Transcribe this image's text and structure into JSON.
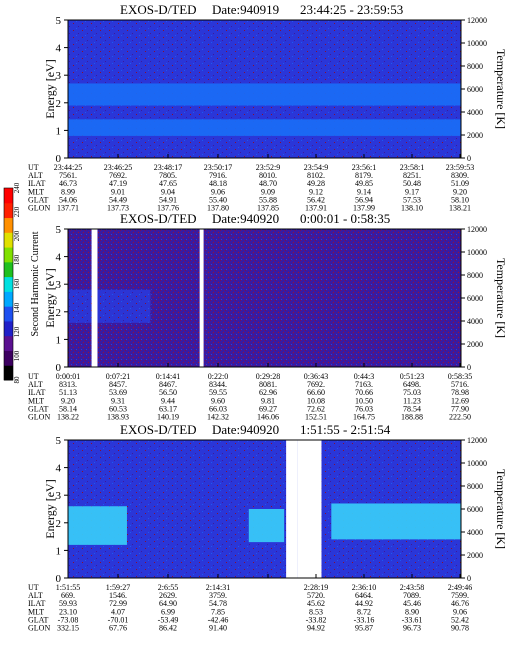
{
  "chart_data": [
    {
      "type": "heatmap",
      "title": "EXOS-D/TED",
      "date": "Date:940919",
      "time_range": "23:44:25 - 23:59:53",
      "ylabel": "Energy [eV]",
      "y2label": "Temperature [K]",
      "ylim": [
        0,
        5
      ],
      "y2lim": [
        0,
        12000
      ],
      "yticks": [
        "0",
        "1",
        "2",
        "3",
        "4",
        "5"
      ],
      "y2ticks": [
        "0",
        "2000",
        "4000",
        "6000",
        "8000",
        "10000",
        "12000"
      ],
      "background_level": "blue",
      "bands": [
        {
          "from": 1.9,
          "to": 2.7,
          "level": "bright-blue"
        },
        {
          "from": 1.4,
          "to": 1.9,
          "level": "blue"
        },
        {
          "from": 0.8,
          "to": 1.4,
          "level": "bright-blue"
        }
      ],
      "gaps": [],
      "orbit_rows": [
        {
          "label": "UT",
          "values": [
            "23:44:25",
            "23:46:25",
            "23:48:17",
            "23:50:17",
            "23:52:9",
            "23:54:9",
            "23:56:1",
            "23:58:1",
            "23:59:53"
          ]
        },
        {
          "label": "ALT",
          "values": [
            "7561.",
            "7692.",
            "7805.",
            "7916.",
            "8010.",
            "8102.",
            "8179.",
            "8251.",
            "8309."
          ]
        },
        {
          "label": "ILAT",
          "values": [
            "46.73",
            "47.19",
            "47.65",
            "48.18",
            "48.70",
            "49.28",
            "49.85",
            "50.48",
            "51.09"
          ]
        },
        {
          "label": "MLT",
          "values": [
            "8.99",
            "9.01",
            "9.04",
            "9.06",
            "9.09",
            "9.12",
            "9.14",
            "9.17",
            "9.20"
          ]
        },
        {
          "label": "GLAT",
          "values": [
            "54.06",
            "54.49",
            "54.91",
            "55.40",
            "55.88",
            "56.42",
            "56.94",
            "57.53",
            "58.10"
          ]
        },
        {
          "label": "GLON",
          "values": [
            "137.71",
            "137.73",
            "137.76",
            "137.80",
            "137.85",
            "137.91",
            "137.99",
            "138.10",
            "138.21"
          ]
        }
      ]
    },
    {
      "type": "heatmap",
      "title": "EXOS-D/TED",
      "date": "Date:940920",
      "time_range": "0:00:01 - 0:58:35",
      "ylabel": "Energy [eV]",
      "y2label": "Temperature [K]",
      "ylim": [
        0,
        5
      ],
      "y2lim": [
        0,
        12000
      ],
      "yticks": [
        "0",
        "1",
        "2",
        "3",
        "4",
        "5"
      ],
      "y2ticks": [
        "0",
        "2000",
        "4000",
        "6000",
        "8000",
        "10000",
        "12000"
      ],
      "background_level": "indigo",
      "bands": [
        {
          "from": 1.6,
          "to": 2.8,
          "level": "blue",
          "x_end": 0.21
        }
      ],
      "gaps": [
        [
          0.06,
          0.075
        ],
        [
          0.335,
          0.345
        ]
      ],
      "orbit_rows": [
        {
          "label": "UT",
          "values": [
            "0:00:01",
            "0:07:21",
            "0:14:41",
            "0:22:0",
            "0:29:28",
            "0:36:43",
            "0:44:3",
            "0:51:23",
            "0:58:35"
          ]
        },
        {
          "label": "ALT",
          "values": [
            "8313.",
            "8457.",
            "8467.",
            "8344.",
            "8081.",
            "7692.",
            "7163.",
            "6498.",
            "5716."
          ]
        },
        {
          "label": "ILAT",
          "values": [
            "51.13",
            "53.69",
            "56.50",
            "59.55",
            "62.96",
            "66.60",
            "70.66",
            "75.03",
            "78.98"
          ]
        },
        {
          "label": "MLT",
          "values": [
            "9.20",
            "9.31",
            "9.44",
            "9.60",
            "9.81",
            "10.08",
            "10.50",
            "11.23",
            "12.69"
          ]
        },
        {
          "label": "GLAT",
          "values": [
            "58.14",
            "60.53",
            "63.17",
            "66.03",
            "69.27",
            "72.62",
            "76.03",
            "78.54",
            "77.90"
          ]
        },
        {
          "label": "GLON",
          "values": [
            "138.22",
            "138.93",
            "140.19",
            "142.32",
            "146.06",
            "152.51",
            "164.75",
            "188.88",
            "222.50"
          ]
        }
      ]
    },
    {
      "type": "heatmap",
      "title": "EXOS-D/TED",
      "date": "Date:940920",
      "time_range": "1:51:55 - 2:51:54",
      "ylabel": "Energy [eV]",
      "y2label": "Temperature [K]",
      "ylim": [
        0,
        5
      ],
      "y2lim": [
        0,
        12000
      ],
      "yticks": [
        "0",
        "1",
        "2",
        "3",
        "4",
        "5"
      ],
      "y2ticks": [
        "0",
        "2000",
        "4000",
        "6000",
        "8000",
        "10000",
        "12000"
      ],
      "background_level": "blue",
      "bands": [
        {
          "from": 1.2,
          "to": 2.6,
          "level": "cyan",
          "x_start": 0.0,
          "x_end": 0.15
        },
        {
          "from": 1.3,
          "to": 2.5,
          "level": "cyan",
          "x_start": 0.46,
          "x_end": 0.55
        },
        {
          "from": 1.4,
          "to": 2.7,
          "level": "cyan",
          "x_start": 0.67,
          "x_end": 1.0
        }
      ],
      "gaps": [
        [
          0.555,
          0.585
        ],
        [
          0.585,
          0.645
        ]
      ],
      "orbit_rows": [
        {
          "label": "UT",
          "values": [
            "1:51:55",
            "1:59:27",
            "2:6:55",
            "2:14:31",
            "",
            "2:28:19",
            "2:36:10",
            "2:43:58",
            "2:49:46"
          ]
        },
        {
          "label": "ALT",
          "values": [
            "669.",
            "1546.",
            "2629.",
            "3759.",
            "",
            "5720.",
            "6464.",
            "7089.",
            "7599."
          ]
        },
        {
          "label": "ILAT",
          "values": [
            "59.93",
            "72.99",
            "64.90",
            "54.78",
            "",
            "45.62",
            "44.92",
            "45.46",
            "46.76"
          ]
        },
        {
          "label": "MLT",
          "values": [
            "23.10",
            "4.07",
            "6.99",
            "7.85",
            "",
            "8.53",
            "8.72",
            "8.90",
            "9.06"
          ]
        },
        {
          "label": "GLAT",
          "values": [
            "-73.08",
            "-70.01",
            "-53.49",
            "-42.46",
            "",
            "-33.82",
            "-33.16",
            "-33.61",
            "52.42"
          ]
        },
        {
          "label": "GLON",
          "values": [
            "332.15",
            "67.76",
            "86.42",
            "91.40",
            "",
            "94.92",
            "95.87",
            "96.73",
            "90.78"
          ]
        }
      ]
    }
  ],
  "colorbar": {
    "label": "Second Harmonic Current",
    "ticks": [
      "80",
      "100",
      "120",
      "140",
      "160",
      "180",
      "200",
      "220",
      "240"
    ],
    "colors": [
      "#000000",
      "#3c0060",
      "#5a1090",
      "#2020c8",
      "#1e50f0",
      "#00a8ff",
      "#00e0e0",
      "#20c020",
      "#80e000",
      "#e0e000",
      "#ff9000",
      "#ff2000",
      "#ff0000"
    ]
  }
}
